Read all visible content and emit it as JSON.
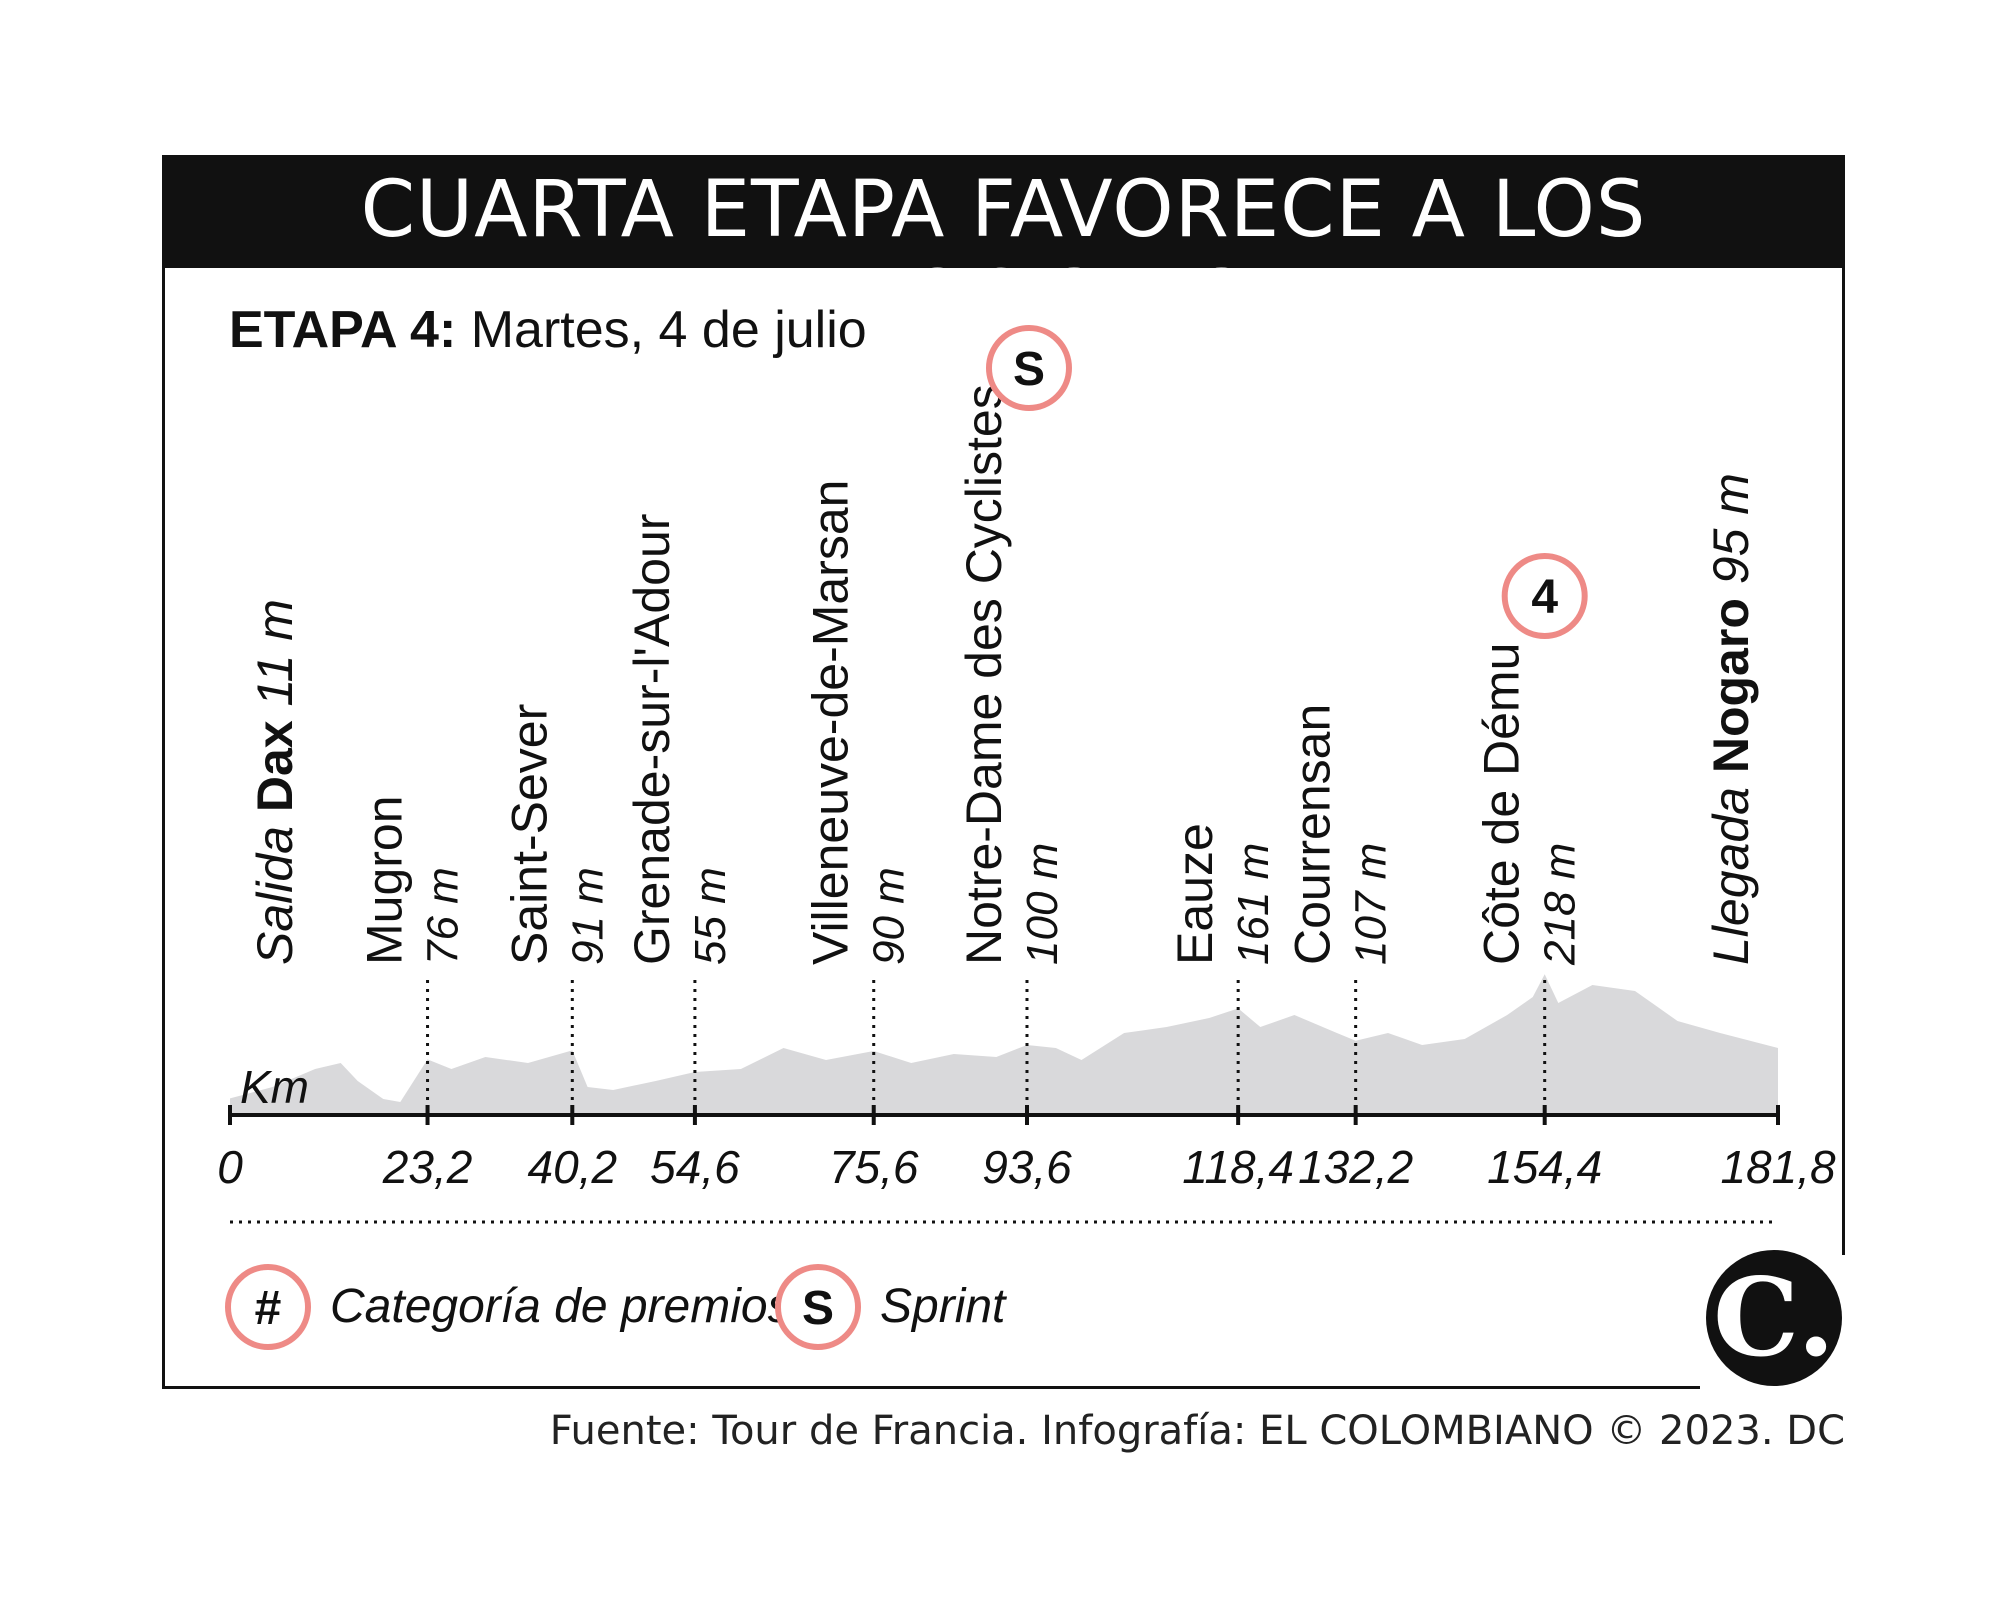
{
  "header": {
    "title": "CUARTA ETAPA FAVORECE A LOS VELOCISTAS",
    "stage_label": "ETAPA 4:",
    "stage_date": "Martes, 4 de julio"
  },
  "chart_data": {
    "type": "area",
    "xlabel": "Km",
    "xlim": [
      0,
      181.8
    ],
    "x_ticks": [
      "0",
      "23,2",
      "40,2",
      "54,6",
      "75,6",
      "93,6",
      "118,4",
      "132,2",
      "154,4",
      "181,8"
    ],
    "profile": {
      "km": [
        0,
        5,
        10,
        13,
        15,
        18,
        20,
        23.2,
        26,
        30,
        35,
        40.2,
        42,
        45,
        50,
        54.6,
        60,
        65,
        70,
        75.6,
        80,
        85,
        90,
        93.6,
        97,
        100,
        105,
        110,
        115,
        118.4,
        121,
        125,
        130,
        132.2,
        136,
        140,
        145,
        150,
        153,
        154.4,
        156,
        160,
        165,
        170,
        175,
        181.8
      ],
      "elevation_m": [
        11,
        30,
        60,
        70,
        40,
        10,
        5,
        76,
        60,
        80,
        70,
        91,
        30,
        25,
        40,
        55,
        60,
        95,
        75,
        90,
        70,
        85,
        80,
        100,
        95,
        75,
        120,
        130,
        145,
        161,
        130,
        150,
        120,
        107,
        120,
        100,
        110,
        150,
        180,
        218,
        170,
        200,
        190,
        140,
        120,
        95
      ]
    },
    "points": [
      {
        "km": "0",
        "place_prefix": "Salida",
        "place": "Dax",
        "elevation": "11 m"
      },
      {
        "km": "23,2",
        "place": "Mugron",
        "elevation": "76 m"
      },
      {
        "km": "40,2",
        "place": "Saint-Sever",
        "elevation": "91 m"
      },
      {
        "km": "54,6",
        "place": "Grenade-sur-l'Adour",
        "elevation": "55 m"
      },
      {
        "km": "75,6",
        "place": "Villeneuve-de-Marsan",
        "elevation": "90 m"
      },
      {
        "km": "93,6",
        "place": "Notre-Dame des Cyclistes",
        "elevation": "100 m",
        "marker": "S"
      },
      {
        "km": "118,4",
        "place": "Eauze",
        "elevation": "161 m"
      },
      {
        "km": "132,2",
        "place": "Courrensan",
        "elevation": "107 m"
      },
      {
        "km": "154,4",
        "place": "Côte de Dému",
        "elevation": "218 m",
        "marker": "4"
      },
      {
        "km": "181,8",
        "place_prefix": "Llegada",
        "place": "Nogaro",
        "elevation": "95 m"
      }
    ],
    "colors": {
      "profile": "#d9d9db",
      "marker_ring": "#ee8a86",
      "axis": "#111111"
    }
  },
  "legend": {
    "category_symbol": "#",
    "category_label": "Categoría de premios",
    "sprint_symbol": "S",
    "sprint_label": "Sprint"
  },
  "footer": {
    "source": "Fuente: Tour de Francia. Infografía: EL COLOMBIANO © 2023. DC",
    "logo_text": "C."
  }
}
